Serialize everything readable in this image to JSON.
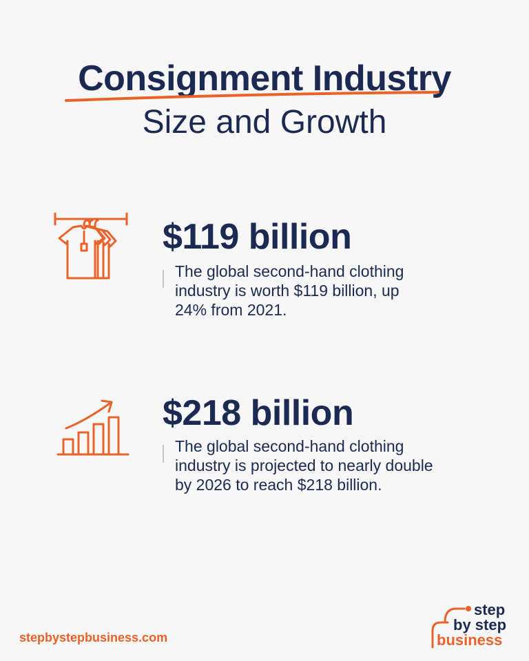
{
  "header": {
    "title": "Consignment Industry",
    "subtitle": "Size and Growth"
  },
  "stats": [
    {
      "value": "$119 billion",
      "description_lines": [
        "The global second-hand clothing",
        "industry is worth $119 billion, up",
        "24% from 2021."
      ],
      "icon": "clothing-rack-icon"
    },
    {
      "value": "$218 billion",
      "description_lines": [
        "The global second-hand clothing",
        "industry is projected to nearly double",
        "by 2026 to reach $218 billion."
      ],
      "icon": "growth-chart-icon"
    }
  ],
  "footer": {
    "url": "stepbystepbusiness.com",
    "logo_lines": [
      "step",
      "by step",
      "business"
    ]
  },
  "colors": {
    "accent": "#e8622a",
    "text": "#1b2a52",
    "background": "#f7f7f7"
  }
}
